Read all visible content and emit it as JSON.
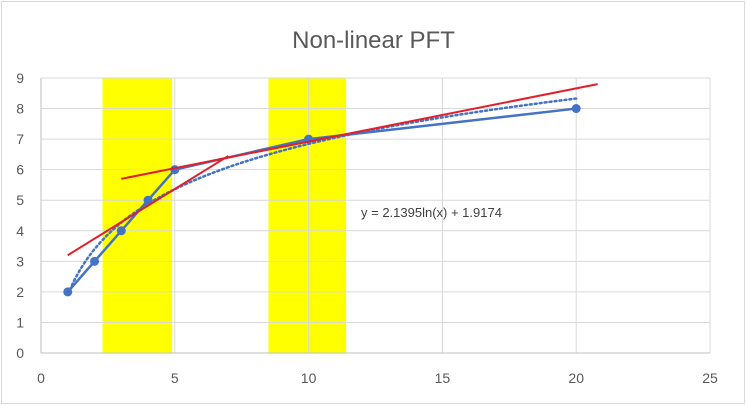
{
  "chart_data": {
    "type": "scatter",
    "title": "Non-linear PFT",
    "xlim": [
      0,
      25
    ],
    "ylim": [
      0,
      9
    ],
    "x_ticks": [
      0,
      5,
      10,
      15,
      20,
      25
    ],
    "y_ticks": [
      0,
      1,
      2,
      3,
      4,
      5,
      6,
      7,
      8,
      9
    ],
    "grid": "major gridlines on both axes",
    "legend": "none",
    "series": [
      {
        "style": "line with markers",
        "color": "#4472c4",
        "points": [
          {
            "x": 1,
            "y": 2
          },
          {
            "x": 2,
            "y": 3
          },
          {
            "x": 3,
            "y": 4
          },
          {
            "x": 4,
            "y": 5
          },
          {
            "x": 5,
            "y": 6
          },
          {
            "x": 10,
            "y": 7
          },
          {
            "x": 20,
            "y": 8
          }
        ]
      }
    ],
    "trendline": {
      "type": "logarithmic",
      "style": "dotted",
      "color": "#4472c4",
      "a": 2.1395,
      "b": 1.9174,
      "x_range": [
        1,
        20
      ],
      "equation_label": "y = 2.1395ln(x) + 1.9174"
    },
    "highlight_bands": [
      {
        "x_range": [
          2.3,
          4.9
        ],
        "color": "#ffff00"
      },
      {
        "x_range": [
          8.5,
          11.4
        ],
        "color": "#ffff00"
      }
    ],
    "tangent_lines": [
      {
        "color": "#e0202a",
        "points": [
          {
            "x": 1,
            "y": 3.2
          },
          {
            "x": 7,
            "y": 6.45
          }
        ]
      },
      {
        "color": "#e0202a",
        "points": [
          {
            "x": 3,
            "y": 5.7
          },
          {
            "x": 20.8,
            "y": 8.8
          }
        ]
      }
    ]
  }
}
